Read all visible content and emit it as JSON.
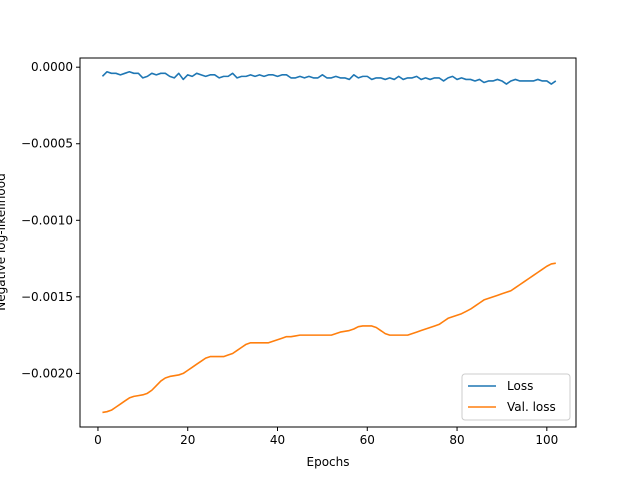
{
  "chart_data": {
    "type": "line",
    "title": "",
    "xlabel": "Epochs",
    "ylabel": "Negative log-likelihood",
    "xlim": [
      -4,
      106.5
    ],
    "ylim": [
      -0.00235,
      6e-05
    ],
    "xticks": [
      0,
      20,
      40,
      60,
      80,
      100
    ],
    "xtick_labels": [
      "0",
      "20",
      "40",
      "60",
      "80",
      "100"
    ],
    "yticks": [
      0,
      -0.0005,
      -0.001,
      -0.0015,
      -0.002
    ],
    "ytick_labels": [
      "0.0000",
      "−0.0005",
      "−0.0010",
      "−0.0015",
      "−0.0020"
    ],
    "grid": false,
    "legend_position": "lower-right",
    "series": [
      {
        "name": "Loss",
        "color": "#1f77b4",
        "x": [
          1,
          2,
          3,
          4,
          5,
          6,
          7,
          8,
          9,
          10,
          11,
          12,
          13,
          14,
          15,
          16,
          17,
          18,
          19,
          20,
          21,
          22,
          23,
          24,
          25,
          26,
          27,
          28,
          29,
          30,
          31,
          32,
          33,
          34,
          35,
          36,
          37,
          38,
          39,
          40,
          41,
          42,
          43,
          44,
          45,
          46,
          47,
          48,
          49,
          50,
          51,
          52,
          53,
          54,
          55,
          56,
          57,
          58,
          59,
          60,
          61,
          62,
          63,
          64,
          65,
          66,
          67,
          68,
          69,
          70,
          71,
          72,
          73,
          74,
          75,
          76,
          77,
          78,
          79,
          80,
          81,
          82,
          83,
          84,
          85,
          86,
          87,
          88,
          89,
          90,
          91,
          92,
          93,
          94,
          95,
          96,
          97,
          98,
          99,
          100,
          101,
          102
        ],
        "y": [
          -6e-05,
          -3e-05,
          -4e-05,
          -4e-05,
          -5e-05,
          -4e-05,
          -3e-05,
          -4e-05,
          -4e-05,
          -7e-05,
          -6e-05,
          -4e-05,
          -5e-05,
          -4e-05,
          -4e-05,
          -6e-05,
          -7e-05,
          -4e-05,
          -8e-05,
          -5e-05,
          -6e-05,
          -4e-05,
          -5e-05,
          -6e-05,
          -5e-05,
          -5e-05,
          -7e-05,
          -6e-05,
          -6e-05,
          -4e-05,
          -7e-05,
          -6e-05,
          -6e-05,
          -5e-05,
          -6e-05,
          -5e-05,
          -6e-05,
          -5e-05,
          -5e-05,
          -6e-05,
          -5e-05,
          -5e-05,
          -7e-05,
          -7e-05,
          -6e-05,
          -7e-05,
          -6e-05,
          -7e-05,
          -7e-05,
          -5e-05,
          -7e-05,
          -7e-05,
          -6e-05,
          -7e-05,
          -7e-05,
          -8e-05,
          -5e-05,
          -7e-05,
          -6e-05,
          -6e-05,
          -8e-05,
          -7e-05,
          -7e-05,
          -8e-05,
          -7e-05,
          -8e-05,
          -6e-05,
          -8e-05,
          -7e-05,
          -7e-05,
          -6e-05,
          -8e-05,
          -7e-05,
          -8e-05,
          -7e-05,
          -7e-05,
          -9e-05,
          -7e-05,
          -6e-05,
          -8e-05,
          -7e-05,
          -8e-05,
          -8e-05,
          -9e-05,
          -8e-05,
          -0.0001,
          -9e-05,
          -9e-05,
          -8e-05,
          -9e-05,
          -0.00011,
          -9e-05,
          -8e-05,
          -9e-05,
          -9e-05,
          -9e-05,
          -9e-05,
          -8e-05,
          -9e-05,
          -9e-05,
          -0.00011,
          -9e-05
        ]
      },
      {
        "name": "Val. loss",
        "color": "#ff7f0e",
        "x": [
          1,
          2,
          3,
          4,
          5,
          6,
          7,
          8,
          9,
          10,
          11,
          12,
          13,
          14,
          15,
          16,
          17,
          18,
          19,
          20,
          21,
          22,
          23,
          24,
          25,
          26,
          27,
          28,
          29,
          30,
          31,
          32,
          33,
          34,
          35,
          36,
          37,
          38,
          39,
          40,
          41,
          42,
          43,
          44,
          45,
          46,
          47,
          48,
          49,
          50,
          51,
          52,
          53,
          54,
          55,
          56,
          57,
          58,
          59,
          60,
          61,
          62,
          63,
          64,
          65,
          66,
          67,
          68,
          69,
          70,
          71,
          72,
          73,
          74,
          75,
          76,
          77,
          78,
          79,
          80,
          81,
          82,
          83,
          84,
          85,
          86,
          87,
          88,
          89,
          90,
          91,
          92,
          93,
          94,
          95,
          96,
          97,
          98,
          99,
          100,
          101,
          102
        ],
        "y": [
          -0.002255,
          -0.00225,
          -0.00224,
          -0.00222,
          -0.0022,
          -0.00218,
          -0.00216,
          -0.00215,
          -0.002145,
          -0.00214,
          -0.00213,
          -0.00211,
          -0.00208,
          -0.00205,
          -0.00203,
          -0.00202,
          -0.002015,
          -0.00201,
          -0.002,
          -0.00198,
          -0.00196,
          -0.00194,
          -0.00192,
          -0.0019,
          -0.00189,
          -0.00189,
          -0.00189,
          -0.00189,
          -0.00188,
          -0.00187,
          -0.00185,
          -0.00183,
          -0.00181,
          -0.0018,
          -0.0018,
          -0.0018,
          -0.0018,
          -0.0018,
          -0.00179,
          -0.00178,
          -0.00177,
          -0.00176,
          -0.00176,
          -0.001755,
          -0.00175,
          -0.00175,
          -0.00175,
          -0.00175,
          -0.00175,
          -0.00175,
          -0.00175,
          -0.00175,
          -0.00174,
          -0.00173,
          -0.001725,
          -0.00172,
          -0.00171,
          -0.001695,
          -0.00169,
          -0.00169,
          -0.00169,
          -0.0017,
          -0.00172,
          -0.00174,
          -0.00175,
          -0.00175,
          -0.00175,
          -0.00175,
          -0.00175,
          -0.00174,
          -0.00173,
          -0.00172,
          -0.00171,
          -0.0017,
          -0.00169,
          -0.00168,
          -0.00166,
          -0.00164,
          -0.00163,
          -0.00162,
          -0.00161,
          -0.001595,
          -0.00158,
          -0.00156,
          -0.00154,
          -0.00152,
          -0.00151,
          -0.0015,
          -0.00149,
          -0.00148,
          -0.00147,
          -0.00146,
          -0.00144,
          -0.00142,
          -0.0014,
          -0.00138,
          -0.00136,
          -0.00134,
          -0.00132,
          -0.0013,
          -0.001285,
          -0.00128
        ]
      }
    ]
  }
}
